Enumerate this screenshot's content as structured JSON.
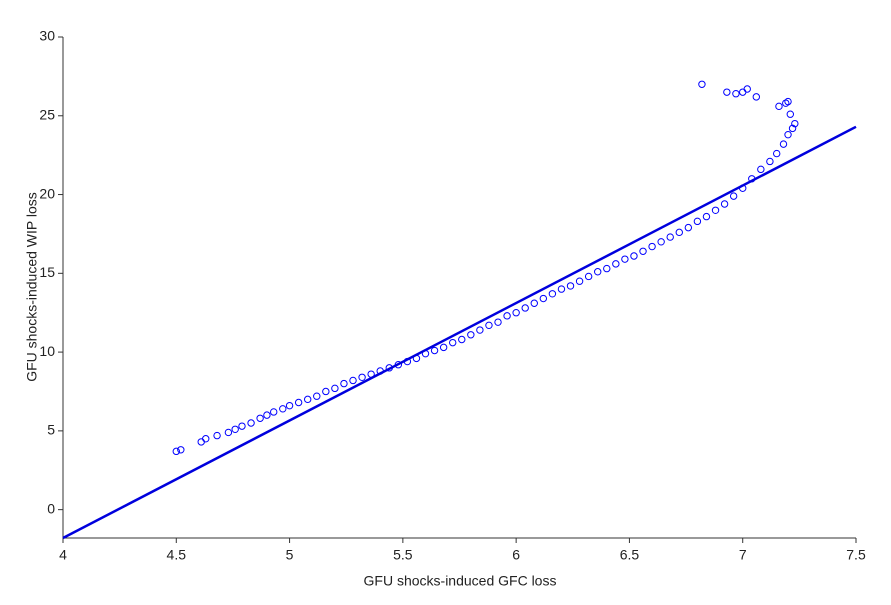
{
  "chart_data": {
    "type": "scatter",
    "x_label": "GFU shocks-induced GFC loss",
    "y_label": "GFU shocks-induced WIP loss",
    "xlim": [
      4,
      7.5
    ],
    "ylim": [
      -1.8,
      30
    ],
    "xticks": [
      4,
      4.5,
      5,
      5.5,
      6,
      6.5,
      7,
      7.5
    ],
    "yticks": [
      0,
      5,
      10,
      15,
      20,
      25,
      30
    ],
    "grid": false,
    "series": [
      {
        "mode": "markers",
        "color": "#0000ff",
        "x": [
          4.5,
          4.52,
          4.61,
          4.63,
          4.68,
          4.73,
          4.76,
          4.79,
          4.83,
          4.87,
          4.9,
          4.93,
          4.97,
          5.0,
          5.04,
          5.08,
          5.12,
          5.16,
          5.2,
          5.24,
          5.28,
          5.32,
          5.36,
          5.4,
          5.44,
          5.48,
          5.52,
          5.56,
          5.6,
          5.64,
          5.68,
          5.72,
          5.76,
          5.8,
          5.84,
          5.88,
          5.92,
          5.96,
          6.0,
          6.04,
          6.08,
          6.12,
          6.16,
          6.2,
          6.24,
          6.28,
          6.32,
          6.36,
          6.4,
          6.44,
          6.48,
          6.52,
          6.56,
          6.6,
          6.64,
          6.68,
          6.72,
          6.76,
          6.8,
          6.84,
          6.88,
          6.92,
          6.96,
          7.0,
          7.04,
          7.08,
          7.12,
          7.15,
          7.18,
          7.2,
          7.22,
          7.23,
          7.21,
          7.19,
          7.16,
          7.2,
          7.06,
          7.02,
          7.0,
          6.97,
          6.93,
          6.82
        ],
        "values": [
          3.7,
          3.8,
          4.3,
          4.5,
          4.7,
          4.9,
          5.1,
          5.3,
          5.5,
          5.8,
          6.0,
          6.2,
          6.4,
          6.6,
          6.8,
          7.0,
          7.2,
          7.5,
          7.7,
          8.0,
          8.2,
          8.4,
          8.6,
          8.8,
          9.0,
          9.2,
          9.4,
          9.6,
          9.9,
          10.1,
          10.3,
          10.6,
          10.8,
          11.1,
          11.4,
          11.7,
          11.9,
          12.3,
          12.5,
          12.8,
          13.1,
          13.4,
          13.7,
          14.0,
          14.2,
          14.5,
          14.8,
          15.1,
          15.3,
          15.6,
          15.9,
          16.1,
          16.4,
          16.7,
          17.0,
          17.3,
          17.6,
          17.9,
          18.3,
          18.6,
          19.0,
          19.4,
          19.9,
          20.4,
          21.0,
          21.6,
          22.1,
          22.6,
          23.2,
          23.8,
          24.2,
          24.5,
          25.1,
          25.8,
          25.6,
          25.9,
          26.2,
          26.7,
          26.5,
          26.4,
          26.5,
          27.0
        ]
      },
      {
        "mode": "line",
        "color": "#0000dd",
        "x": [
          4,
          7.5
        ],
        "values": [
          -1.8,
          24.3
        ]
      }
    ]
  }
}
